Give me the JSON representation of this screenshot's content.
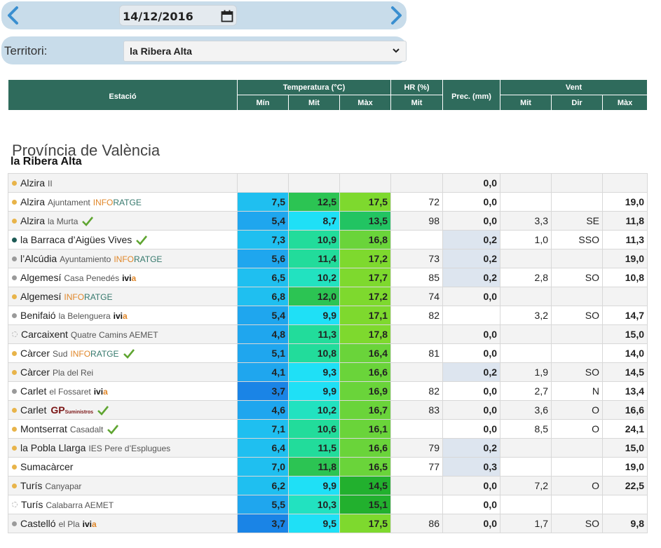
{
  "date_bar": {
    "date_value": "14/12/2016"
  },
  "territory": {
    "label": "Territori:",
    "selected": "la Ribera Alta"
  },
  "table_header": {
    "estacio": "Estació",
    "temperatura": "Temperatura (°C)",
    "hr": "HR (%)",
    "prec": "Prec. (mm)",
    "vent": "Vent",
    "min": "Mín",
    "mit": "Mit",
    "max": "Màx",
    "hr_mit": "Mit",
    "vent_mit": "Mit",
    "dir": "Dir",
    "vent_max": "Màx"
  },
  "province": "Província de València",
  "comarca": "la Ribera Alta",
  "colors": {
    "header_bg": "#2f6b5c",
    "bar_bg": "#c8dcea",
    "dot_orange": "#e8b44a",
    "dot_grey": "#9a9a9a",
    "dot_teal": "#1d5a55",
    "check_green": "#5fa531"
  },
  "stations": [
    {
      "name": "Alzira",
      "sub": "II",
      "sponsor": "",
      "dot": "orange",
      "check": false,
      "flag": false,
      "tmin": "",
      "tmit": "",
      "tmax": "",
      "hr": "",
      "prec": "0,0",
      "wmit": "",
      "dir": "",
      "wmax": "",
      "cmin": "",
      "cmit": "",
      "cmax": "",
      "prec_shade": false
    },
    {
      "name": "Alzira",
      "sub": "Ajuntament",
      "sponsor": "inforatge",
      "dot": "orange",
      "check": false,
      "flag": false,
      "tmin": "7,5",
      "tmit": "12,5",
      "tmax": "17,5",
      "hr": "72",
      "prec": "0,0",
      "wmit": "",
      "dir": "",
      "wmax": "19,0",
      "cmin": "#1fbff0",
      "cmit": "#2cc453",
      "cmax": "#7ed92e",
      "prec_shade": false
    },
    {
      "name": "Alzira",
      "sub": "la Murta",
      "sponsor": "",
      "dot": "orange",
      "check": true,
      "flag": true,
      "tmin": "5,4",
      "tmit": "8,7",
      "tmax": "13,5",
      "hr": "98",
      "prec": "0,0",
      "wmit": "3,3",
      "dir": "SE",
      "wmax": "11,8",
      "cmin": "#1fa6ee",
      "cmit": "#1fe0f6",
      "cmax": "#22c462",
      "prec_shade": false
    },
    {
      "name": "la Barraca d’Aigües Vives",
      "sub": "",
      "sponsor": "",
      "dot": "teal",
      "check": true,
      "flag": true,
      "tmin": "7,3",
      "tmit": "10,9",
      "tmax": "16,8",
      "hr": "",
      "prec": "0,2",
      "wmit": "1,0",
      "dir": "SSO",
      "wmax": "11,3",
      "cmin": "#1fbff0",
      "cmit": "#22dc9b",
      "cmax": "#6ad43a",
      "prec_shade": true
    },
    {
      "name": "l’Alcúdia",
      "sub": "Ayuntamiento",
      "sponsor": "inforatge",
      "dot": "grey",
      "check": false,
      "flag": false,
      "tmin": "5,6",
      "tmit": "11,4",
      "tmax": "17,2",
      "hr": "73",
      "prec": "0,2",
      "wmit": "",
      "dir": "",
      "wmax": "19,0",
      "cmin": "#1fa6ee",
      "cmit": "#22dc9b",
      "cmax": "#7ed92e",
      "prec_shade": true
    },
    {
      "name": "Algemesí",
      "sub": "Casa Penedés",
      "sponsor": "ivia",
      "dot": "grey",
      "check": false,
      "flag": false,
      "tmin": "6,5",
      "tmit": "10,2",
      "tmax": "17,7",
      "hr": "85",
      "prec": "0,2",
      "wmit": "2,8",
      "dir": "SO",
      "wmax": "10,8",
      "cmin": "#1fbff0",
      "cmit": "#22e2c0",
      "cmax": "#7ed92e",
      "prec_shade": true
    },
    {
      "name": "Algemesí",
      "sub": "",
      "sponsor": "inforatge",
      "dot": "orange",
      "check": false,
      "flag": false,
      "tmin": "6,8",
      "tmit": "12,0",
      "tmax": "17,2",
      "hr": "74",
      "prec": "0,0",
      "wmit": "",
      "dir": "",
      "wmax": "",
      "cmin": "#1fbff0",
      "cmit": "#2cc453",
      "cmax": "#7ed92e",
      "prec_shade": false
    },
    {
      "name": "Benifaió",
      "sub": "la Belenguera",
      "sponsor": "ivia",
      "dot": "grey",
      "check": false,
      "flag": false,
      "tmin": "5,4",
      "tmit": "9,9",
      "tmax": "17,1",
      "hr": "82",
      "prec": "",
      "wmit": "3,2",
      "dir": "SO",
      "wmax": "14,7",
      "cmin": "#1fa6ee",
      "cmit": "#1fe0f6",
      "cmax": "#7ed92e",
      "prec_shade": false
    },
    {
      "name": "Carcaixent",
      "sub": "Quatre Camins AEMET",
      "sponsor": "",
      "dot": "hollow",
      "check": false,
      "flag": false,
      "tmin": "4,8",
      "tmit": "11,3",
      "tmax": "17,8",
      "hr": "",
      "prec": "0,0",
      "wmit": "",
      "dir": "",
      "wmax": "15,0",
      "cmin": "#1fa6ee",
      "cmit": "#22dc9b",
      "cmax": "#7ed92e",
      "prec_shade": false
    },
    {
      "name": "Càrcer",
      "sub": "Sud",
      "sponsor": "inforatge",
      "dot": "orange",
      "check": true,
      "flag": true,
      "tmin": "5,1",
      "tmit": "10,8",
      "tmax": "16,4",
      "hr": "81",
      "prec": "0,0",
      "wmit": "",
      "dir": "",
      "wmax": "14,0",
      "cmin": "#1fa6ee",
      "cmit": "#22dc9b",
      "cmax": "#6ad43a",
      "prec_shade": false
    },
    {
      "name": "Càrcer",
      "sub": "Pla del Rei",
      "sponsor": "",
      "dot": "orange",
      "check": false,
      "flag": false,
      "tmin": "4,1",
      "tmit": "9,3",
      "tmax": "16,6",
      "hr": "",
      "prec": "0,2",
      "wmit": "1,9",
      "dir": "SO",
      "wmax": "14,5",
      "cmin": "#1fa6ee",
      "cmit": "#1fe0f6",
      "cmax": "#6ad43a",
      "prec_shade": true
    },
    {
      "name": "Carlet",
      "sub": "el Fossaret",
      "sponsor": "ivia",
      "dot": "grey",
      "check": false,
      "flag": false,
      "tmin": "3,7",
      "tmit": "9,9",
      "tmax": "16,9",
      "hr": "82",
      "prec": "0,0",
      "wmit": "2,7",
      "dir": "N",
      "wmax": "13,4",
      "cmin": "#1a84e6",
      "cmit": "#1fe0f6",
      "cmax": "#6ad43a",
      "prec_shade": false
    },
    {
      "name": "Carlet",
      "sub": "",
      "sponsor": "gp",
      "dot": "orange",
      "check": true,
      "flag": true,
      "tmin": "4,6",
      "tmit": "10,2",
      "tmax": "16,7",
      "hr": "83",
      "prec": "0,0",
      "wmit": "3,6",
      "dir": "O",
      "wmax": "16,6",
      "cmin": "#1fa6ee",
      "cmit": "#22e2c0",
      "cmax": "#6ad43a",
      "prec_shade": false
    },
    {
      "name": "Montserrat",
      "sub": "Casadalt",
      "sponsor": "",
      "dot": "orange",
      "check": true,
      "flag": true,
      "tmin": "7,1",
      "tmit": "10,6",
      "tmax": "16,1",
      "hr": "",
      "prec": "0,0",
      "wmit": "8,5",
      "dir": "O",
      "wmax": "24,1",
      "cmin": "#1fbff0",
      "cmit": "#22dc9b",
      "cmax": "#6ad43a",
      "prec_shade": false
    },
    {
      "name": "la Pobla Llarga",
      "sub": "IES Pere d’Esplugues",
      "sponsor": "",
      "dot": "orange",
      "check": false,
      "flag": false,
      "tmin": "6,4",
      "tmit": "11,5",
      "tmax": "16,6",
      "hr": "79",
      "prec": "0,2",
      "wmit": "",
      "dir": "",
      "wmax": "15,0",
      "cmin": "#1fbff0",
      "cmit": "#22dc9b",
      "cmax": "#6ad43a",
      "prec_shade": true
    },
    {
      "name": "Sumacàrcer",
      "sub": "",
      "sponsor": "",
      "dot": "orange",
      "check": false,
      "flag": false,
      "tmin": "7,0",
      "tmit": "11,8",
      "tmax": "16,5",
      "hr": "77",
      "prec": "0,3",
      "wmit": "",
      "dir": "",
      "wmax": "19,0",
      "cmin": "#1fbff0",
      "cmit": "#2cc453",
      "cmax": "#6ad43a",
      "prec_shade": true
    },
    {
      "name": "Turís",
      "sub": "Canyapar",
      "sponsor": "",
      "dot": "orange",
      "check": false,
      "flag": false,
      "tmin": "6,2",
      "tmit": "9,9",
      "tmax": "14,5",
      "hr": "",
      "prec": "0,0",
      "wmit": "7,2",
      "dir": "O",
      "wmax": "22,5",
      "cmin": "#1fbff0",
      "cmit": "#1fe0f6",
      "cmax": "#22b02e",
      "prec_shade": false
    },
    {
      "name": "Turís",
      "sub": "Calabarra AEMET",
      "sponsor": "",
      "dot": "hollow",
      "check": false,
      "flag": false,
      "tmin": "5,5",
      "tmit": "10,3",
      "tmax": "15,1",
      "hr": "",
      "prec": "0,0",
      "wmit": "",
      "dir": "",
      "wmax": "",
      "cmin": "#1fa6ee",
      "cmit": "#22e2c0",
      "cmax": "#22b02e",
      "prec_shade": false
    },
    {
      "name": "Castelló",
      "sub": "el Pla",
      "sponsor": "ivia",
      "dot": "grey",
      "check": false,
      "flag": false,
      "tmin": "3,7",
      "tmit": "9,5",
      "tmax": "17,5",
      "hr": "86",
      "prec": "0,0",
      "wmit": "1,7",
      "dir": "SO",
      "wmax": "9,8",
      "cmin": "#1a84e6",
      "cmit": "#1fe0f6",
      "cmax": "#7ed92e",
      "prec_shade": false
    }
  ]
}
